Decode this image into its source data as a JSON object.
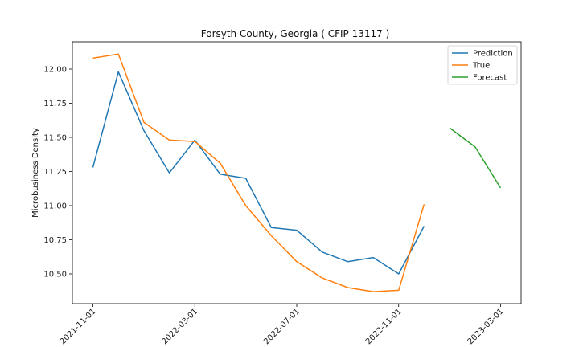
{
  "chart_data": {
    "type": "line",
    "title": "Forsyth County, Georgia ( CFIP 13117 )",
    "xlabel": "",
    "ylabel": "Microbusiness Density",
    "x_ticks": [
      "2021-11-01",
      "2022-03-01",
      "2022-07-01",
      "2022-11-01",
      "2023-03-01"
    ],
    "y_ticks": [
      "10.50",
      "10.75",
      "11.00",
      "11.25",
      "11.50",
      "11.75",
      "12.00"
    ],
    "ylim": [
      10.3,
      12.2
    ],
    "legend_position": "top-right",
    "grid": false,
    "series": [
      {
        "name": "Prediction",
        "color": "#1f77b4",
        "x": [
          "2021-11-01",
          "2021-12-01",
          "2022-01-01",
          "2022-02-01",
          "2022-03-01",
          "2022-04-01",
          "2022-05-01",
          "2022-06-01",
          "2022-07-01",
          "2022-08-01",
          "2022-09-01",
          "2022-10-01",
          "2022-11-01",
          "2022-12-01"
        ],
        "values": [
          11.28,
          11.98,
          11.55,
          11.24,
          11.48,
          11.23,
          11.2,
          10.84,
          10.82,
          10.66,
          10.59,
          10.62,
          10.5,
          10.85
        ]
      },
      {
        "name": "True",
        "color": "#ff7f0e",
        "x": [
          "2021-11-01",
          "2021-12-01",
          "2022-01-01",
          "2022-02-01",
          "2022-03-01",
          "2022-04-01",
          "2022-05-01",
          "2022-06-01",
          "2022-07-01",
          "2022-08-01",
          "2022-09-01",
          "2022-10-01",
          "2022-11-01",
          "2022-12-01"
        ],
        "values": [
          12.08,
          12.11,
          11.61,
          11.48,
          11.47,
          11.31,
          11.0,
          10.78,
          10.59,
          10.47,
          10.4,
          10.37,
          10.38,
          11.01
        ]
      },
      {
        "name": "Forecast",
        "color": "#2ca02c",
        "x": [
          "2023-01-01",
          "2023-02-01",
          "2023-03-01"
        ],
        "values": [
          11.57,
          11.43,
          11.13
        ]
      }
    ]
  }
}
